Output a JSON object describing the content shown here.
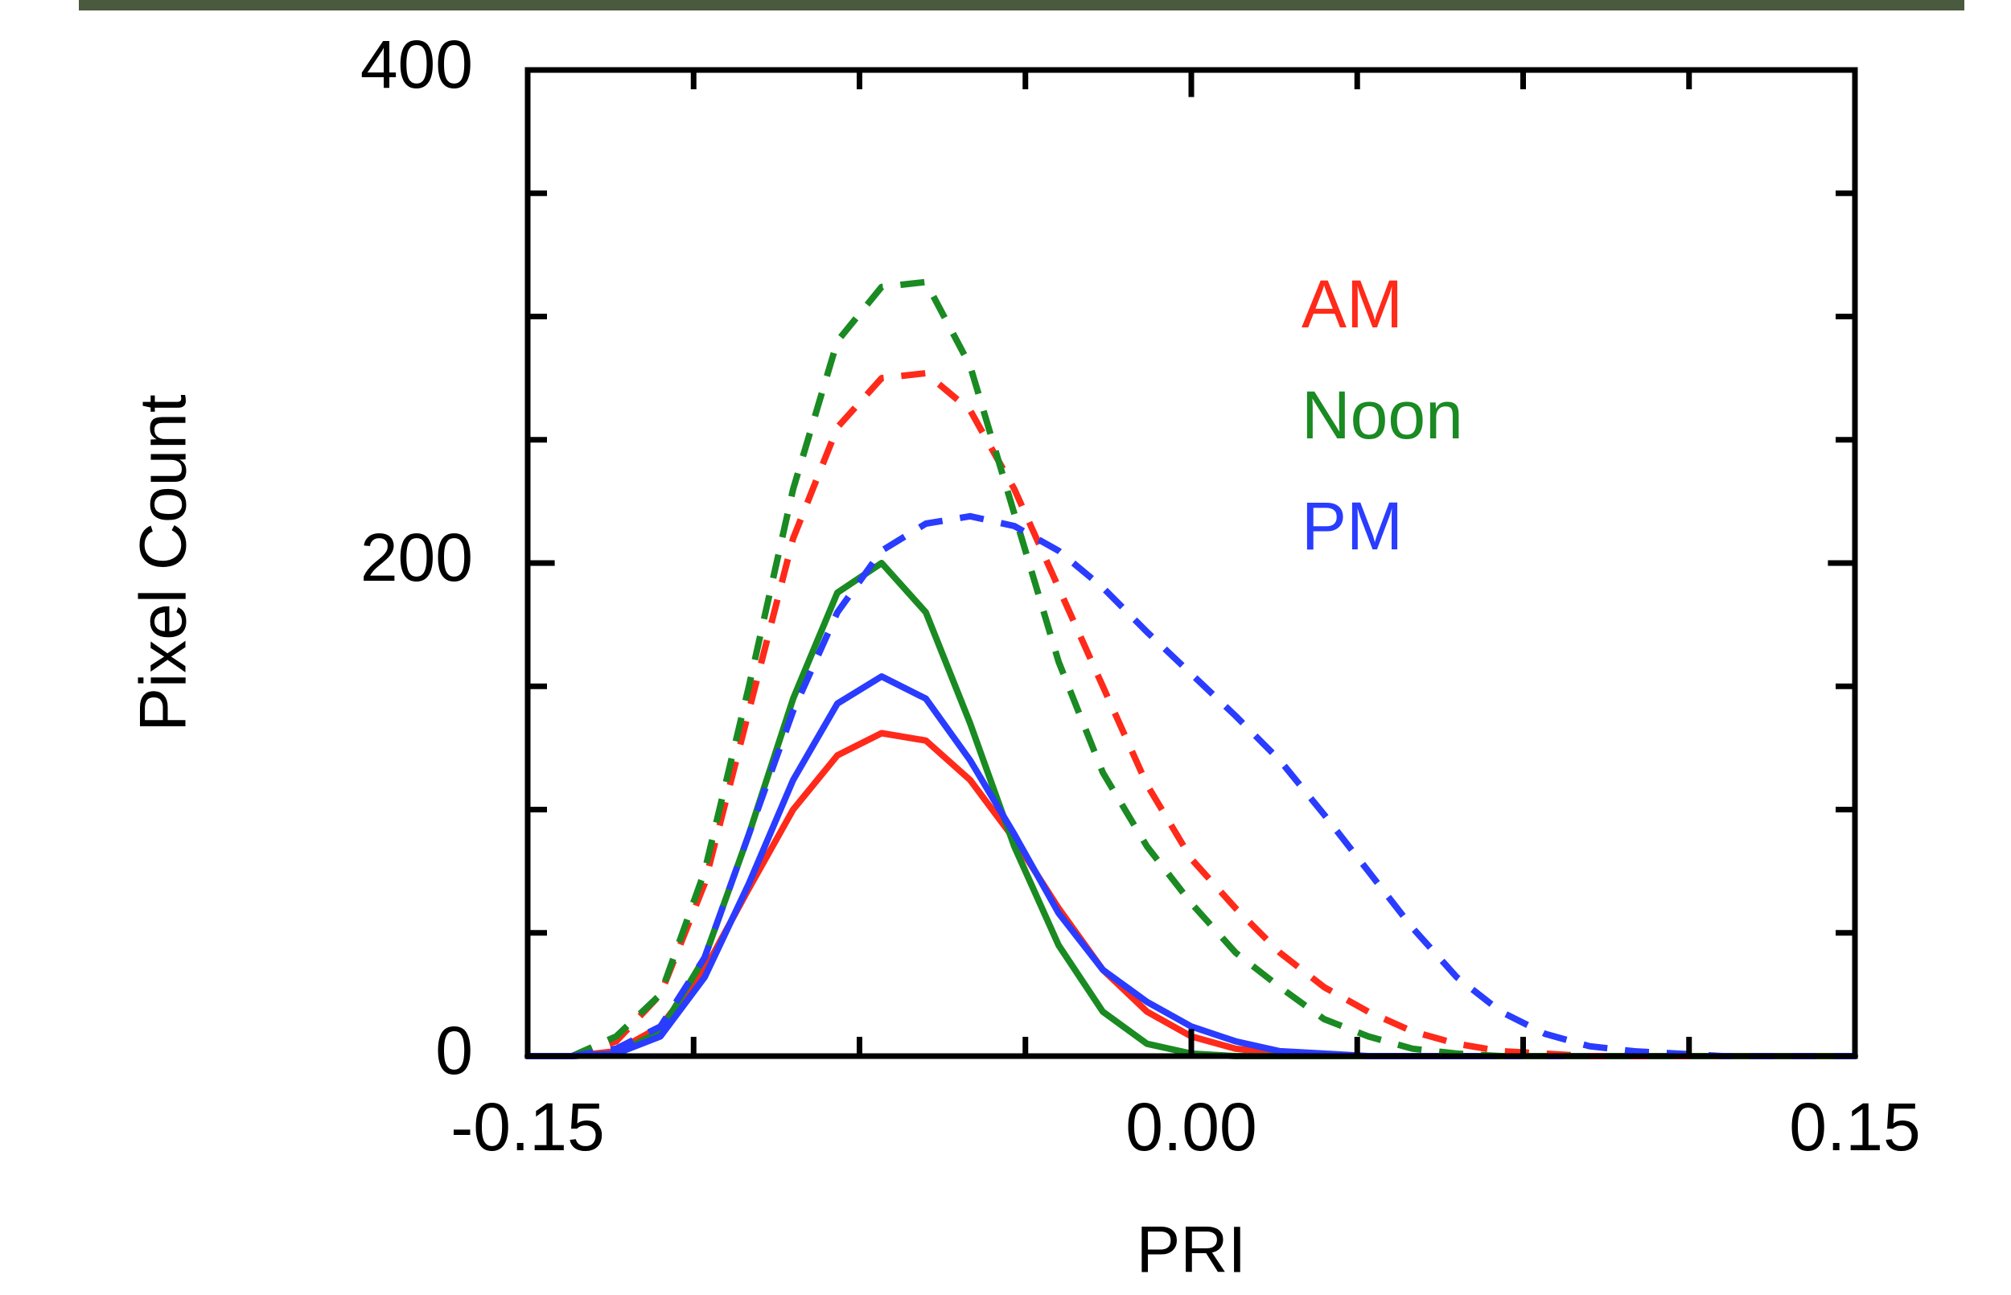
{
  "chart_data": {
    "type": "line",
    "x_label": "PRI",
    "y_label": "Pixel Count",
    "x": [
      -0.15,
      -0.14,
      -0.13,
      -0.12,
      -0.11,
      -0.1,
      -0.09,
      -0.08,
      -0.07,
      -0.06,
      -0.05,
      -0.04,
      -0.03,
      -0.02,
      -0.01,
      0,
      0.01,
      0.02,
      0.03,
      0.04,
      0.05,
      0.06,
      0.07,
      0.08,
      0.09,
      0.1,
      0.11,
      0.12,
      0.13,
      0.14,
      0.15
    ],
    "series": [
      {
        "name": "AM",
        "color": "#ff2a1a",
        "dashed": false,
        "values": [
          0,
          0,
          2,
          12,
          35,
          68,
          100,
          122,
          131,
          128,
          112,
          88,
          60,
          35,
          18,
          8,
          3,
          1,
          0,
          0,
          0,
          0,
          0,
          0,
          0,
          0,
          0,
          0,
          0,
          0,
          0
        ]
      },
      {
        "name": "Noon",
        "color": "#1a8a22",
        "dashed": false,
        "values": [
          0,
          0,
          1,
          10,
          40,
          90,
          145,
          188,
          200,
          180,
          135,
          85,
          45,
          18,
          5,
          1,
          0,
          0,
          0,
          0,
          0,
          0,
          0,
          0,
          0,
          0,
          0,
          0,
          0,
          0,
          0
        ]
      },
      {
        "name": "PM",
        "color": "#2a3cff",
        "dashed": false,
        "values": [
          0,
          0,
          1,
          8,
          32,
          70,
          112,
          143,
          154,
          145,
          120,
          90,
          58,
          35,
          22,
          12,
          6,
          2,
          1,
          0,
          0,
          0,
          0,
          0,
          0,
          0,
          0,
          0,
          0,
          0,
          0
        ]
      },
      {
        "color": "#ff2a1a",
        "dashed": true,
        "values": [
          0,
          0,
          6,
          25,
          70,
          140,
          210,
          255,
          275,
          277,
          262,
          230,
          190,
          150,
          110,
          80,
          60,
          42,
          28,
          18,
          10,
          5,
          2,
          1,
          0,
          0,
          0,
          0,
          0,
          0,
          0
        ]
      },
      {
        "color": "#1a8a22",
        "dashed": true,
        "values": [
          0,
          0,
          8,
          25,
          75,
          150,
          230,
          290,
          312,
          314,
          280,
          220,
          160,
          115,
          85,
          62,
          42,
          28,
          15,
          8,
          3,
          1,
          0,
          0,
          0,
          0,
          0,
          0,
          0,
          0,
          0
        ]
      },
      {
        "color": "#2a3cff",
        "dashed": true,
        "values": [
          0,
          0,
          3,
          12,
          40,
          90,
          140,
          180,
          205,
          216,
          219,
          215,
          205,
          190,
          172,
          155,
          138,
          120,
          98,
          75,
          52,
          32,
          18,
          9,
          4,
          2,
          1,
          0,
          0,
          0,
          0
        ]
      }
    ],
    "xlim": [
      -0.15,
      0.15
    ],
    "xticks": [
      {
        "value": -0.15,
        "label": "-0.15"
      },
      {
        "value": 0,
        "label": "0.00"
      },
      {
        "value": 0.15,
        "label": "0.15"
      }
    ],
    "xminor": [
      -0.1125,
      -0.075,
      -0.0375,
      0.0375,
      0.075,
      0.1125
    ],
    "ylim": [
      0,
      400
    ],
    "yticks": [
      0,
      200,
      400
    ],
    "yminor": [
      50,
      100,
      150,
      250,
      300,
      350
    ],
    "grid": false,
    "legend": "top-right"
  }
}
